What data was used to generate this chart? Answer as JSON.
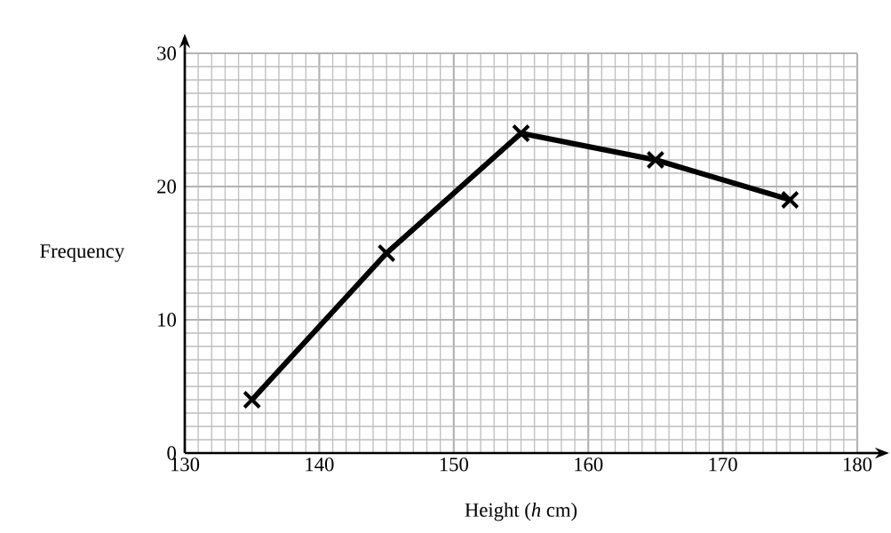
{
  "chart_data": {
    "type": "line",
    "xlabel": "Height (*h* cm)",
    "ylabel": "Frequency",
    "x": [
      135,
      145,
      155,
      165,
      175
    ],
    "series": [
      {
        "color": "#000000",
        "values": [
          4,
          15,
          24,
          22,
          19
        ]
      }
    ],
    "xlim": [
      130,
      180
    ],
    "ylim": [
      0,
      30
    ],
    "xticks": [
      130,
      140,
      150,
      160,
      170,
      180
    ],
    "yticks": [
      0,
      10,
      20,
      30
    ],
    "grid": true,
    "marker": "cross",
    "line_style": "solid"
  }
}
